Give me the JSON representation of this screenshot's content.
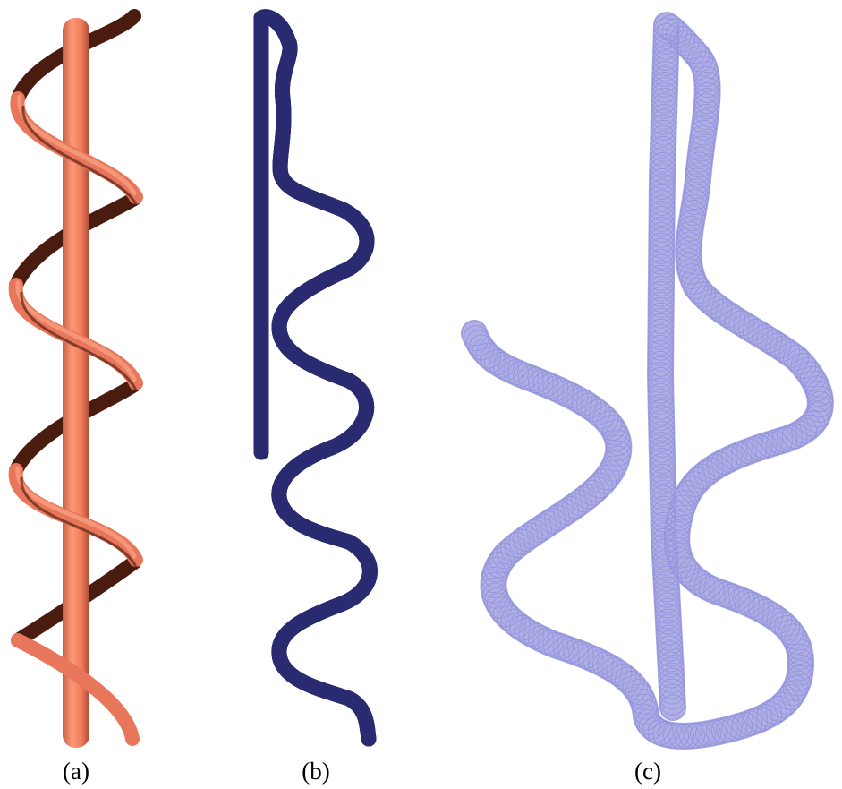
{
  "panels": [
    {
      "id": "a",
      "caption": "(a)",
      "description_color": "#f07c5a"
    },
    {
      "id": "b",
      "caption": "(b)",
      "description_color": "#4b4ba8"
    },
    {
      "id": "c",
      "caption": "(c)",
      "description_color": "#8c8cd8"
    }
  ],
  "colors": {
    "rod": "#f07c5a",
    "rod_shade": "#b4533a",
    "helix_front": "#e8765a",
    "helix_back": "#5a2316",
    "tube_fill": "#4b4ba8",
    "tube_edge": "#2a2a70",
    "circle_stroke": "#8c8cd8",
    "centerline": "#000000"
  }
}
